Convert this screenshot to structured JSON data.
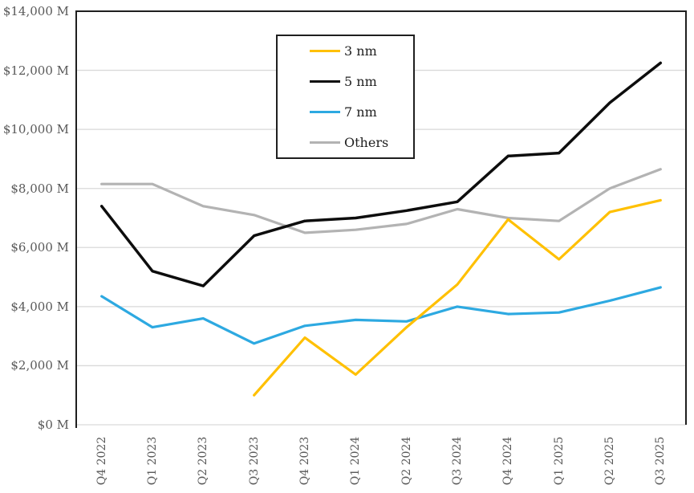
{
  "chart_data": {
    "type": "line",
    "title": "",
    "unit": "$ M",
    "grid": "horizontal",
    "legend_position": "inside-top-center",
    "categories": [
      "Q4 2022",
      "Q1 2023",
      "Q2 2023",
      "Q3 2023",
      "Q4 2023",
      "Q1 2024",
      "Q2 2024",
      "Q3 2024",
      "Q4 2024",
      "Q1 2025",
      "Q2 2025",
      "Q3 2025"
    ],
    "y_axis": {
      "min": 0,
      "max": 14000,
      "step": 2000,
      "ticks": [
        14000,
        12000,
        10000,
        8000,
        6000,
        4000,
        2000,
        0
      ],
      "labels": [
        "$14,000 M",
        "$12,000 M",
        "$10,000 M",
        "$8,000 M",
        "$6,000 M",
        "$4,000 M",
        "$2,000 M",
        "$0 M"
      ]
    },
    "series": [
      {
        "name": "3 nm",
        "color": "#FFC000",
        "values": [
          null,
          null,
          null,
          1000,
          2950,
          1700,
          3300,
          4750,
          6950,
          5600,
          7200,
          7600
        ]
      },
      {
        "name": "5 nm",
        "color": "#0d0d0d",
        "values": [
          7400,
          5200,
          4700,
          6400,
          6900,
          7000,
          7250,
          7550,
          9100,
          9200,
          10900,
          12250
        ]
      },
      {
        "name": "7 nm",
        "color": "#2DA9E1",
        "values": [
          4350,
          3300,
          3600,
          2750,
          3350,
          3550,
          3500,
          4000,
          3750,
          3800,
          4200,
          4650
        ]
      },
      {
        "name": "Others",
        "color": "#B3B3B3",
        "values": [
          8150,
          8150,
          7400,
          7100,
          6500,
          6600,
          6800,
          7300,
          7000,
          6900,
          8000,
          8650
        ]
      }
    ]
  },
  "colors": {
    "background": "#ffffff",
    "gridline": "#d9d9d9",
    "plot_border": "#1f1f1f",
    "axis_text": "#595959",
    "legend_text": "#1f1f1f"
  }
}
